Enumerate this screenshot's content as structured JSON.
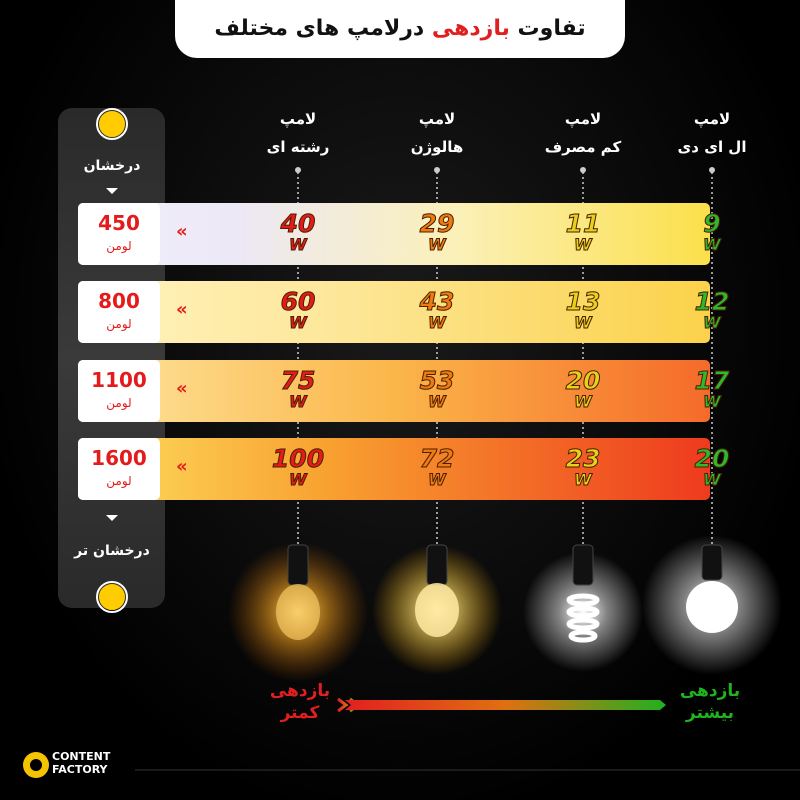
{
  "header": {
    "title_start": "تفاوت",
    "title_highlight": "بازدهی",
    "title_end": "درلامپ های مختلف"
  },
  "columns": [
    {
      "line1": "لامپ",
      "line2": "ال ای دی"
    },
    {
      "line1": "لامپ",
      "line2": "کم مصرف"
    },
    {
      "line1": "لامپ",
      "line2": "هالوژن"
    },
    {
      "line1": "لامپ",
      "line2": "رشته ای"
    }
  ],
  "units": {
    "lumen": "لومن",
    "watt": "W"
  },
  "rows": [
    {
      "lumens": "450",
      "watts": [
        "9",
        "11",
        "29",
        "40"
      ]
    },
    {
      "lumens": "800",
      "watts": [
        "12",
        "13",
        "43",
        "60"
      ]
    },
    {
      "lumens": "1100",
      "watts": [
        "17",
        "20",
        "53",
        "75"
      ]
    },
    {
      "lumens": "1600",
      "watts": [
        "20",
        "23",
        "72",
        "100"
      ]
    }
  ],
  "brightness": {
    "top": "درخشان",
    "bottom": "درخشان تر"
  },
  "efficiency": {
    "more": [
      "بازدهی",
      "بیشتر"
    ],
    "less": [
      "بازدهی",
      "کمتر"
    ]
  },
  "logo": {
    "lines": [
      "CONTENT",
      "FACTORY"
    ]
  }
}
